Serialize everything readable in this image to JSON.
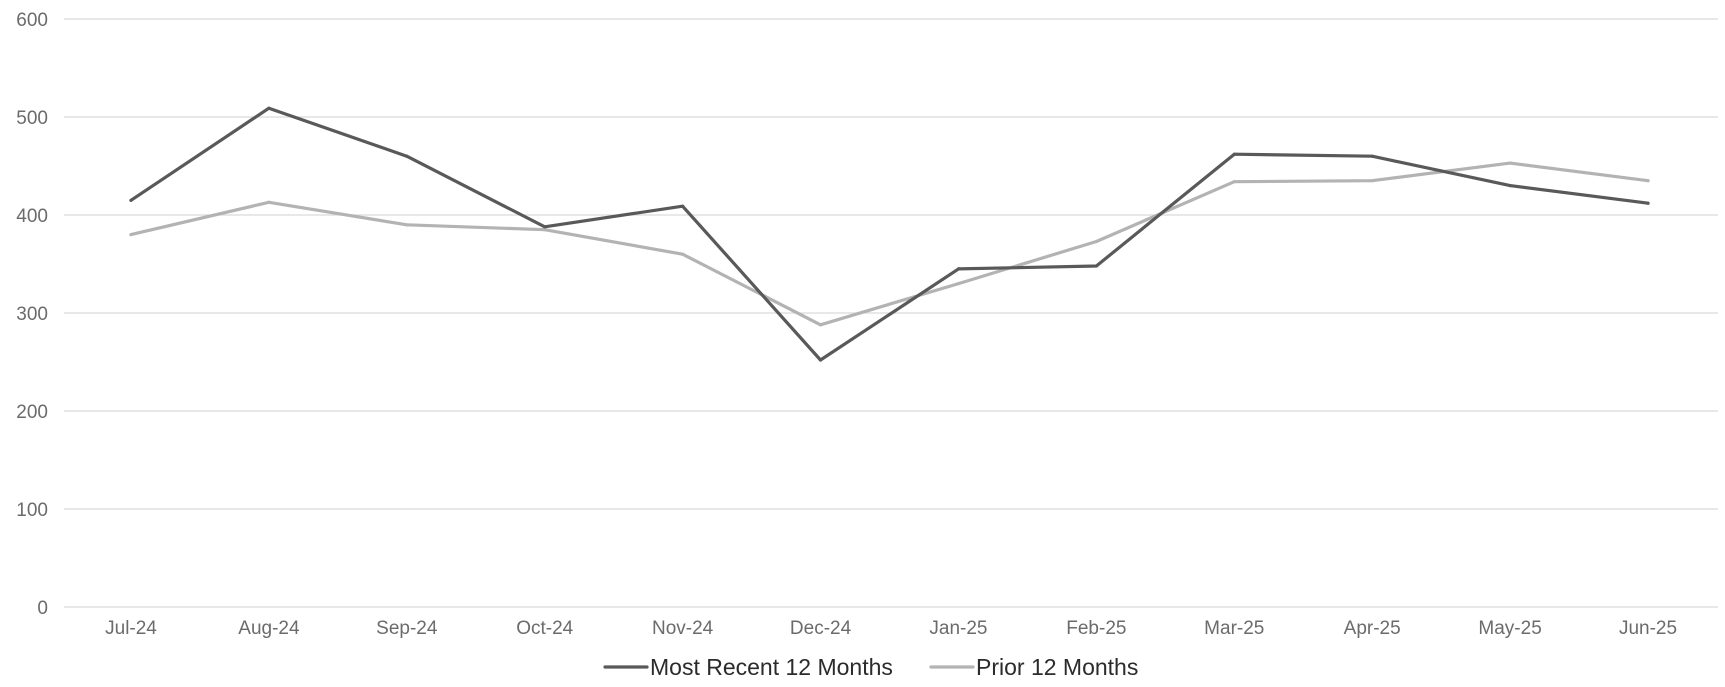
{
  "chart_data": {
    "type": "line",
    "title": "",
    "xlabel": "",
    "ylabel": "",
    "categories": [
      "Jul-24",
      "Aug-24",
      "Sep-24",
      "Oct-24",
      "Nov-24",
      "Dec-24",
      "Jan-25",
      "Feb-25",
      "Mar-25",
      "Apr-25",
      "May-25",
      "Jun-25"
    ],
    "ylim": [
      0,
      600
    ],
    "yticks": [
      "0",
      "100",
      "200",
      "300",
      "400",
      "500",
      "600"
    ],
    "grid": true,
    "legend_position": "bottom-center",
    "series": [
      {
        "name": "Most Recent 12 Months",
        "color": "#595959",
        "values": [
          415,
          509,
          460,
          388,
          409,
          252,
          345,
          348,
          462,
          460,
          430,
          412
        ]
      },
      {
        "name": "Prior 12 Months",
        "color": "#b3b3b3",
        "values": [
          380,
          413,
          390,
          385,
          360,
          288,
          330,
          373,
          434,
          435,
          453,
          435
        ]
      }
    ]
  }
}
